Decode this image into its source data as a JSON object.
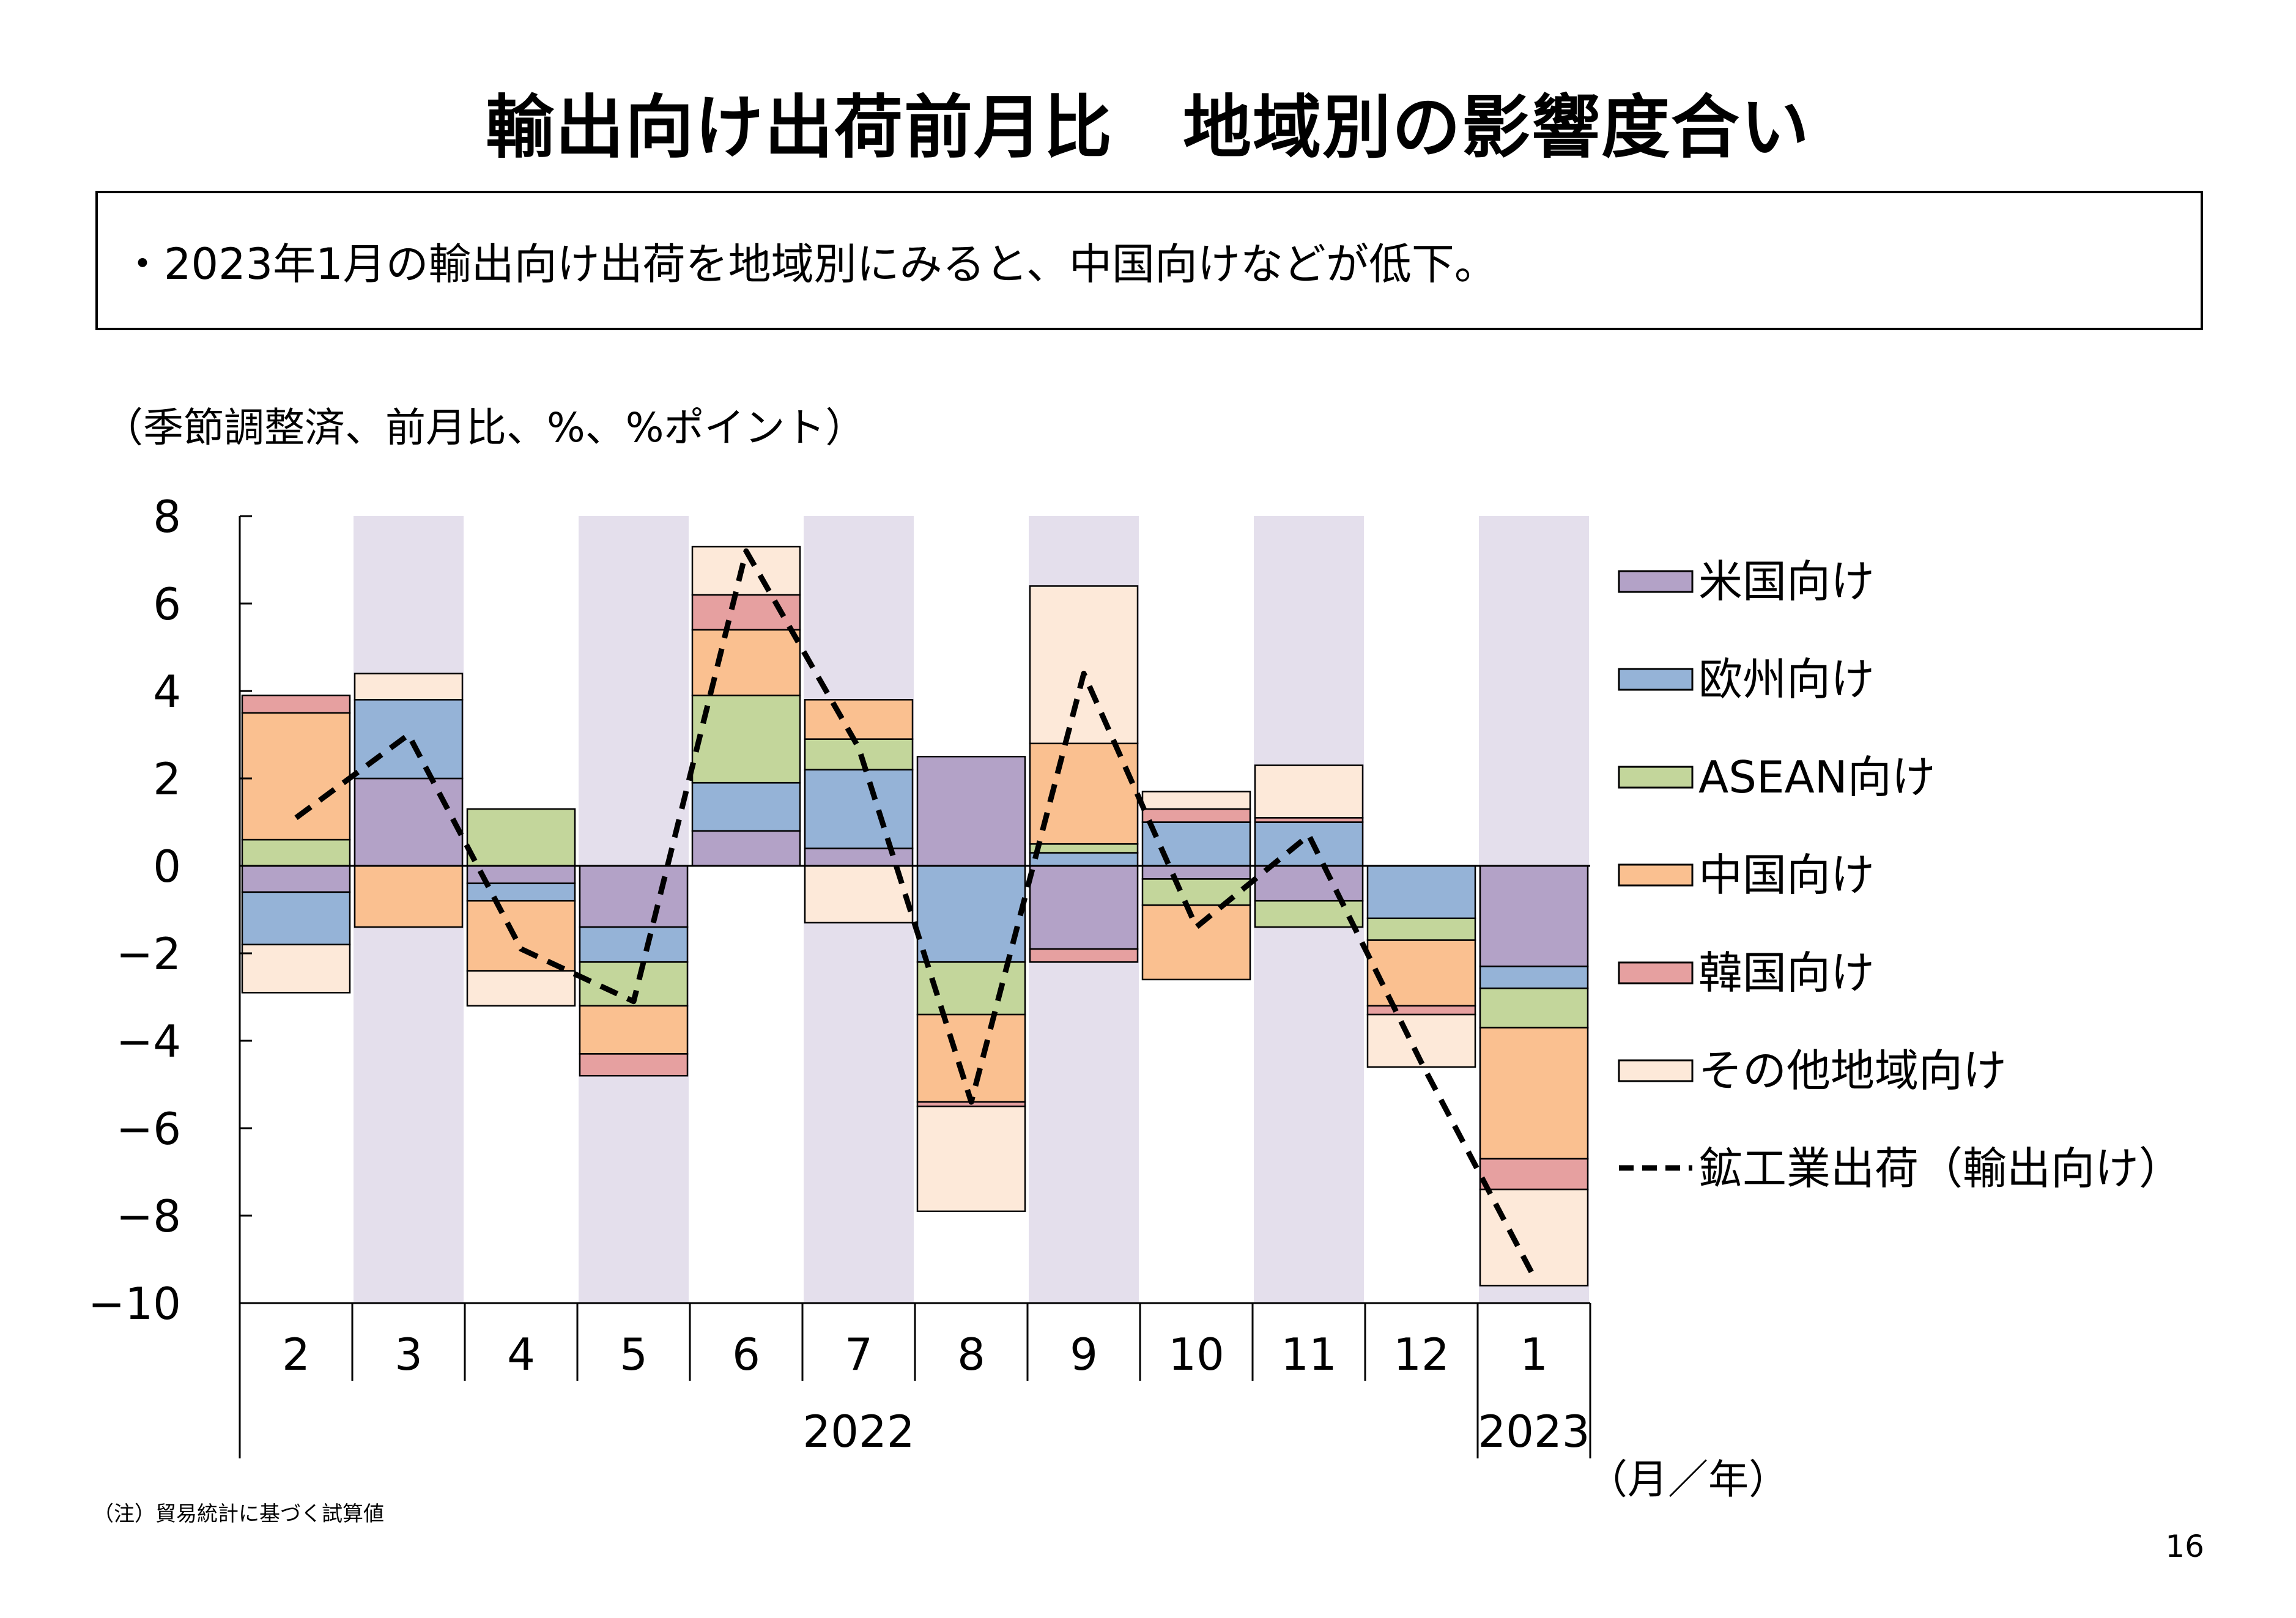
{
  "title": "輸出向け出荷前月比　地域別の影響度合い",
  "summary": "・2023年1月の輸出向け出荷を地域別にみると、中国向けなどが低下。",
  "unit_label": "（季節調整済、前月比、%、%ポイント）",
  "note": "（注）貿易統計に基づく試算値",
  "page_number": "16",
  "colors": {
    "shade": "#e4dfec",
    "usa": "#b3a2c7",
    "europe": "#95b3d7",
    "asean": "#c3d69b",
    "china": "#fac090",
    "korea": "#e6a0a0",
    "other": "#fde9d9",
    "line": "#000000"
  },
  "chart_data": {
    "type": "bar",
    "stacked": true,
    "ylim": [
      -10,
      8
    ],
    "yticks": [
      8,
      6,
      4,
      2,
      0,
      -2,
      -4,
      -6,
      -8,
      -10
    ],
    "ytick_labels": [
      "8",
      "6",
      "4",
      "2",
      "0",
      "−2",
      "−4",
      "−6",
      "−8",
      "−10"
    ],
    "categories": [
      "2",
      "3",
      "4",
      "5",
      "6",
      "7",
      "8",
      "9",
      "10",
      "11",
      "12",
      "1"
    ],
    "years": [
      {
        "label": "2022",
        "from": 0,
        "to": 10
      },
      {
        "label": "2023",
        "from": 11,
        "to": 11
      }
    ],
    "x_unit_label": "（月／年）",
    "shaded_categories": [
      1,
      3,
      5,
      7,
      9,
      11
    ],
    "series": [
      {
        "name": "米国向け",
        "key": "usa",
        "values": [
          -0.6,
          2.0,
          -0.4,
          -1.4,
          0.8,
          0.4,
          2.5,
          -1.9,
          -0.3,
          -0.8,
          0.0,
          -2.3
        ]
      },
      {
        "name": "欧州向け",
        "key": "europe",
        "values": [
          -1.2,
          1.8,
          -0.4,
          -0.8,
          1.1,
          1.8,
          -2.2,
          0.3,
          1.0,
          1.0,
          -1.2,
          -0.5
        ]
      },
      {
        "name": "ASEAN向け",
        "key": "asean",
        "values": [
          0.6,
          0.0,
          1.3,
          -1.0,
          2.0,
          0.7,
          -1.2,
          0.2,
          -0.6,
          -0.6,
          -0.5,
          -0.9
        ]
      },
      {
        "name": "中国向け",
        "key": "china",
        "values": [
          2.9,
          -1.4,
          -1.6,
          -1.1,
          1.5,
          0.9,
          -2.0,
          2.3,
          -1.7,
          0.0,
          -1.5,
          -3.0
        ]
      },
      {
        "name": "韓国向け",
        "key": "korea",
        "values": [
          0.4,
          0.0,
          0.0,
          -0.5,
          0.8,
          0.0,
          -0.1,
          -0.3,
          0.3,
          0.1,
          -0.2,
          -0.7
        ]
      },
      {
        "name": "その他地域向け",
        "key": "other",
        "values": [
          -1.1,
          0.6,
          -0.8,
          0.0,
          1.1,
          -1.3,
          -2.4,
          3.6,
          0.4,
          1.2,
          -1.2,
          -2.2
        ]
      }
    ],
    "line_series": {
      "name": "鉱工業出荷（輸出向け）",
      "key": "line",
      "values": [
        1.1,
        3.0,
        -1.9,
        -3.1,
        7.2,
        2.7,
        -5.4,
        4.4,
        -1.4,
        0.7,
        -4.5,
        -9.4
      ]
    }
  }
}
